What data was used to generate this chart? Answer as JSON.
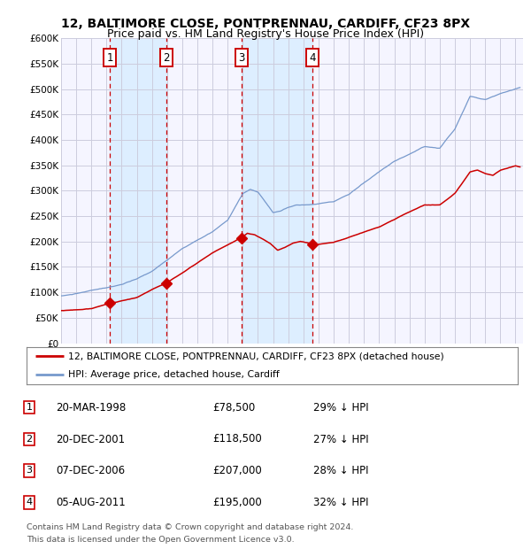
{
  "title": "12, BALTIMORE CLOSE, PONTPRENNAU, CARDIFF, CF23 8PX",
  "subtitle": "Price paid vs. HM Land Registry's House Price Index (HPI)",
  "ylim": [
    0,
    600000
  ],
  "yticks": [
    0,
    50000,
    100000,
    150000,
    200000,
    250000,
    300000,
    350000,
    400000,
    450000,
    500000,
    550000,
    600000
  ],
  "x_start_year": 1995,
  "x_end_year": 2025,
  "bg_color": "#ffffff",
  "plot_bg_color": "#f5f5ff",
  "grid_color": "#ccccdd",
  "red_line_color": "#cc0000",
  "blue_line_color": "#7799cc",
  "sale_marker_color": "#cc0000",
  "vline_color": "#cc0000",
  "vspan_color": "#ddeeff",
  "title_fontsize": 10,
  "subtitle_fontsize": 9,
  "sales": [
    {
      "label": "1",
      "date_year": 1998.22,
      "price": 78500,
      "date_str": "20-MAR-1998",
      "pct": "29% ↓ HPI"
    },
    {
      "label": "2",
      "date_year": 2001.97,
      "price": 118500,
      "date_str": "20-DEC-2001",
      "pct": "27% ↓ HPI"
    },
    {
      "label": "3",
      "date_year": 2006.93,
      "price": 207000,
      "date_str": "07-DEC-2006",
      "pct": "28% ↓ HPI"
    },
    {
      "label": "4",
      "date_year": 2011.59,
      "price": 195000,
      "date_str": "05-AUG-2011",
      "pct": "32% ↓ HPI"
    }
  ],
  "legend_line1": "12, BALTIMORE CLOSE, PONTPRENNAU, CARDIFF, CF23 8PX (detached house)",
  "legend_line2": "HPI: Average price, detached house, Cardiff",
  "footer1": "Contains HM Land Registry data © Crown copyright and database right 2024.",
  "footer2": "This data is licensed under the Open Government Licence v3.0.",
  "hpi_points": {
    "1995.0": 93000,
    "1996.0": 97000,
    "1997.0": 103000,
    "1998.0": 108000,
    "1999.0": 115000,
    "2000.0": 125000,
    "2001.0": 140000,
    "2002.0": 162000,
    "2003.0": 185000,
    "2004.0": 202000,
    "2005.0": 218000,
    "2006.0": 240000,
    "2007.0": 292000,
    "2007.5": 300000,
    "2008.0": 295000,
    "2008.5": 275000,
    "2009.0": 255000,
    "2009.5": 258000,
    "2010.0": 265000,
    "2010.5": 270000,
    "2011.0": 270000,
    "2012.0": 272000,
    "2013.0": 278000,
    "2014.0": 292000,
    "2015.0": 315000,
    "2016.0": 335000,
    "2017.0": 355000,
    "2018.0": 370000,
    "2019.0": 385000,
    "2020.0": 382000,
    "2021.0": 420000,
    "2022.0": 485000,
    "2023.0": 480000,
    "2024.0": 492000,
    "2025.3": 505000
  },
  "red_points": {
    "1995.0": 64000,
    "1996.0": 66000,
    "1997.0": 68000,
    "1998.22": 78500,
    "1999.0": 84000,
    "2000.0": 90000,
    "2001.0": 105000,
    "2001.97": 118500,
    "2003.0": 138000,
    "2004.0": 158000,
    "2005.0": 178000,
    "2006.0": 192000,
    "2006.93": 207000,
    "2007.3": 215000,
    "2007.8": 212000,
    "2008.3": 204000,
    "2008.8": 195000,
    "2009.3": 182000,
    "2009.8": 188000,
    "2010.3": 196000,
    "2010.8": 200000,
    "2011.59": 195000,
    "2012.0": 194000,
    "2013.0": 198000,
    "2014.0": 208000,
    "2015.0": 218000,
    "2016.0": 228000,
    "2017.0": 243000,
    "2018.0": 258000,
    "2019.0": 272000,
    "2020.0": 272000,
    "2021.0": 295000,
    "2022.0": 338000,
    "2022.5": 342000,
    "2023.0": 335000,
    "2023.5": 332000,
    "2024.0": 342000,
    "2025.0": 350000,
    "2025.3": 348000
  }
}
